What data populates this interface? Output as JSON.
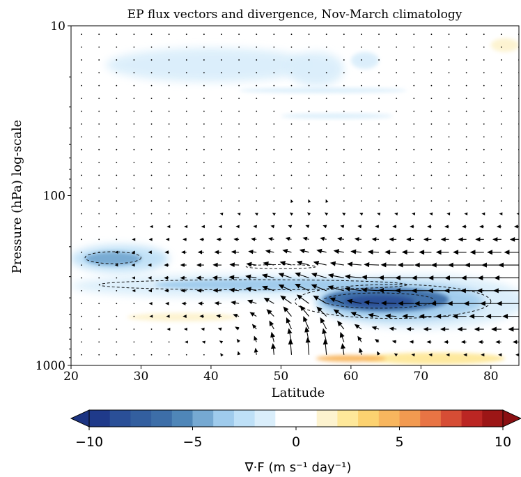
{
  "chart_data": {
    "type": "heatmap",
    "title": "EP flux vectors and divergence, Nov-March climatology",
    "xlabel": "Latitude",
    "ylabel": "Pressure (hPa) log-scale",
    "x_range": [
      20,
      84
    ],
    "y_range_hpa": [
      1000,
      10
    ],
    "y_scale": "log",
    "y_inverted": true,
    "x_ticks": [
      "20",
      "30",
      "40",
      "50",
      "60",
      "70",
      "80"
    ],
    "y_ticks": [
      "10",
      "100",
      "1000"
    ],
    "colorbar": {
      "label": "∇·F (m s⁻¹ day⁻¹)",
      "min": -10,
      "max": 10,
      "ticks": [
        "−10",
        "−5",
        "0",
        "5",
        "10"
      ],
      "extend": "both",
      "colormap": "RdYlBu_r",
      "levels": [
        -10,
        -9,
        -8,
        -7,
        -6,
        -5,
        -4,
        -3,
        -2,
        -1,
        1,
        2,
        3,
        4,
        5,
        6,
        7,
        8,
        9,
        10
      ]
    },
    "divergence_features": [
      {
        "description": "main convergence maximum",
        "lat": 66,
        "p_hpa": 420,
        "value": -9
      },
      {
        "description": "upper convergence band",
        "lat": 45,
        "p_hpa": 330,
        "value": -6
      },
      {
        "description": "subtropical convergence",
        "lat": 26,
        "p_hpa": 230,
        "value": -5
      },
      {
        "description": "stratospheric convergence patches",
        "lat": 55,
        "p_hpa": 18,
        "value": -2
      },
      {
        "description": "near-surface divergence",
        "lat": 65,
        "p_hpa": 900,
        "value": 4
      },
      {
        "description": "subtropical divergence",
        "lat": 33,
        "p_hpa": 520,
        "value": 1.5
      },
      {
        "description": "polar stratospheric divergence",
        "lat": 82,
        "p_hpa": 13,
        "value": 1.5
      }
    ],
    "contours": [
      {
        "style": "dashed",
        "value": -3
      },
      {
        "style": "dashed",
        "value": -6
      }
    ],
    "vectors": {
      "description": "EP flux arrows, upward from the surface near 45-60N, turning equatorward above 400 hPa",
      "grid_lat_step": 2.5,
      "color": "#000000"
    }
  }
}
